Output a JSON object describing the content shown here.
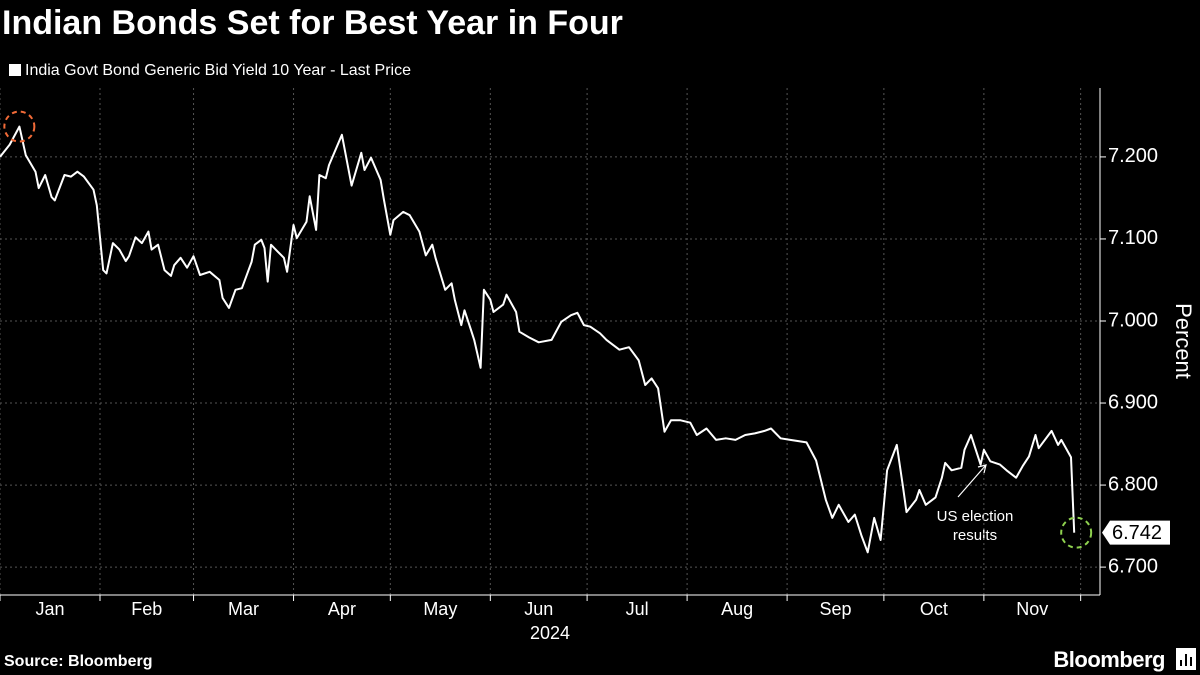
{
  "chart_data": {
    "type": "line",
    "title": "Indian Bonds Set for Best Year in Four",
    "series": [
      {
        "name": "India Govt Bond Generic Bid Yield 10 Year - Last Price",
        "color": "#ffffff",
        "x": [
          1,
          4,
          7,
          9,
          12,
          13,
          15,
          17,
          18,
          21,
          23,
          25,
          27,
          30,
          31,
          33,
          34,
          36,
          38,
          40,
          41,
          43,
          45,
          47,
          48,
          50,
          52,
          54,
          55,
          57,
          59,
          61,
          63,
          66,
          69,
          70,
          72,
          74,
          76,
          79,
          80,
          82,
          83,
          84,
          85,
          87,
          89,
          90,
          92,
          93,
          96,
          97,
          99,
          100,
          102,
          103,
          107,
          110,
          113,
          114,
          116,
          119,
          120,
          122,
          123,
          126,
          128,
          131,
          133,
          135,
          136,
          139,
          141,
          142,
          144,
          145,
          147,
          148,
          150,
          151,
          153,
          154,
          157,
          158,
          161,
          162,
          165,
          168,
          172,
          175,
          178,
          180,
          182,
          184,
          187,
          189,
          191,
          193,
          196,
          199,
          201,
          203,
          205,
          207,
          209,
          212,
          215,
          217,
          220,
          223,
          226,
          229,
          232,
          235,
          238,
          240,
          243,
          246,
          251,
          254,
          257,
          259,
          261,
          264,
          266,
          268,
          270,
          272,
          274,
          276,
          279,
          281,
          282,
          285,
          286,
          288,
          291,
          293,
          294,
          296,
          299,
          300,
          302,
          303,
          305,
          306,
          308,
          311,
          313,
          316,
          318,
          320,
          322,
          323,
          327,
          329,
          330,
          333,
          334
        ],
        "values": [
          7.2,
          7.215,
          7.237,
          7.202,
          7.182,
          7.162,
          7.178,
          7.151,
          7.147,
          7.178,
          7.176,
          7.182,
          7.176,
          7.16,
          7.141,
          7.062,
          7.058,
          7.095,
          7.087,
          7.073,
          7.079,
          7.102,
          7.095,
          7.109,
          7.087,
          7.093,
          7.062,
          7.055,
          7.068,
          7.077,
          7.065,
          7.079,
          7.056,
          7.06,
          7.05,
          7.028,
          7.016,
          7.038,
          7.04,
          7.072,
          7.093,
          7.099,
          7.089,
          7.048,
          7.093,
          7.085,
          7.077,
          7.06,
          7.117,
          7.101,
          7.121,
          7.152,
          7.111,
          7.178,
          7.174,
          7.19,
          7.227,
          7.165,
          7.205,
          7.184,
          7.199,
          7.172,
          7.148,
          7.105,
          7.123,
          7.133,
          7.129,
          7.109,
          7.08,
          7.093,
          7.077,
          7.038,
          7.046,
          7.026,
          6.995,
          7.013,
          6.989,
          6.977,
          6.943,
          7.038,
          7.026,
          7.011,
          7.02,
          7.032,
          7.011,
          6.987,
          6.98,
          6.974,
          6.977,
          6.999,
          7.007,
          7.01,
          6.995,
          6.993,
          6.985,
          6.977,
          6.971,
          6.965,
          6.968,
          6.952,
          6.922,
          6.93,
          6.918,
          6.865,
          6.879,
          6.879,
          6.876,
          6.861,
          6.869,
          6.855,
          6.857,
          6.855,
          6.861,
          6.863,
          6.866,
          6.869,
          6.857,
          6.855,
          6.852,
          6.83,
          6.782,
          6.76,
          6.776,
          6.755,
          6.764,
          6.739,
          6.718,
          6.76,
          6.733,
          6.818,
          6.849,
          6.796,
          6.767,
          6.782,
          6.794,
          6.776,
          6.785,
          6.809,
          6.827,
          6.818,
          6.821,
          6.843,
          6.861,
          6.849,
          6.825,
          6.843,
          6.829,
          6.825,
          6.818,
          6.809,
          6.823,
          6.835,
          6.861,
          6.845,
          6.866,
          6.849,
          6.855,
          6.834,
          6.742
        ]
      }
    ],
    "categories": [
      "Jan",
      "Feb",
      "Mar",
      "Apr",
      "May",
      "Jun",
      "Jul",
      "Aug",
      "Sep",
      "Oct",
      "Nov"
    ],
    "xticks": [
      1,
      32,
      61,
      92,
      122,
      153,
      183,
      214,
      245,
      275,
      306,
      336
    ],
    "xlim": [
      1,
      342
    ],
    "x_label": "2024",
    "ylim": [
      6.666,
      7.284
    ],
    "yticks": [
      {
        "value": 6.7,
        "label": "6.700"
      },
      {
        "value": 6.8,
        "label": "6.800"
      },
      {
        "value": 6.9,
        "label": "6.900"
      },
      {
        "value": 7.0,
        "label": "7.000"
      },
      {
        "value": 7.1,
        "label": "7.100"
      },
      {
        "value": 7.2,
        "label": "7.200"
      }
    ],
    "y_label": "Percent",
    "grid": true,
    "annotation": [
      "US election",
      "results"
    ],
    "source": "Source: Bloomberg",
    "brand": "Bloomberg"
  }
}
